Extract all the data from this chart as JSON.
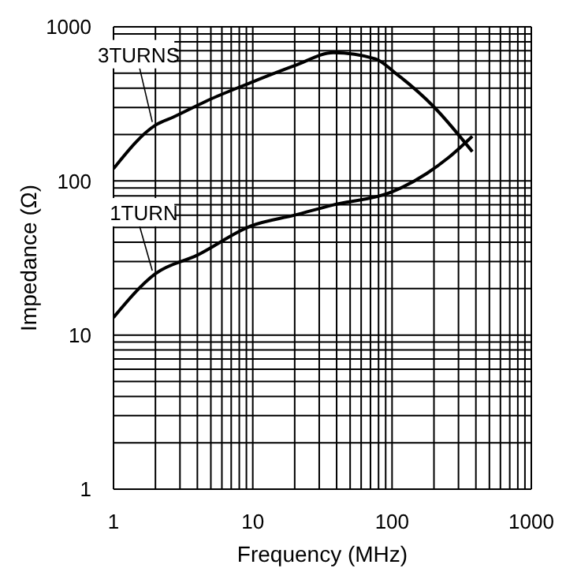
{
  "chart_data": {
    "type": "line",
    "xlabel": "Frequency (MHz)",
    "ylabel": "Impedance (Ω)",
    "log": "xy",
    "grid": true,
    "marker": "none",
    "line_style": "solid",
    "xlim": [
      1,
      1000
    ],
    "ylim": [
      1,
      1000
    ],
    "xticks": [
      1,
      {
        "value": 2,
        "label": null
      },
      {
        "value": 3,
        "label": null
      },
      {
        "value": 4,
        "label": null
      },
      {
        "value": 5,
        "label": null
      },
      {
        "value": 6,
        "label": null
      },
      {
        "value": 7,
        "label": null
      },
      {
        "value": 8,
        "label": null
      },
      {
        "value": 9,
        "label": null
      },
      10,
      {
        "value": 20,
        "label": null
      },
      {
        "value": 30,
        "label": null
      },
      {
        "value": 40,
        "label": null
      },
      {
        "value": 50,
        "label": null
      },
      {
        "value": 60,
        "label": null
      },
      {
        "value": 70,
        "label": null
      },
      {
        "value": 80,
        "label": null
      },
      {
        "value": 90,
        "label": null
      },
      100,
      {
        "value": 200,
        "label": null
      },
      {
        "value": 300,
        "label": null
      },
      {
        "value": 400,
        "label": null
      },
      {
        "value": 500,
        "label": null
      },
      {
        "value": 600,
        "label": null
      },
      {
        "value": 700,
        "label": null
      },
      {
        "value": 800,
        "label": null
      },
      {
        "value": 900,
        "label": null
      },
      1000
    ],
    "yticks": [
      1,
      {
        "value": 2,
        "label": null
      },
      {
        "value": 3,
        "label": null
      },
      {
        "value": 4,
        "label": null
      },
      {
        "value": 5,
        "label": null
      },
      {
        "value": 6,
        "label": null
      },
      {
        "value": 7,
        "label": null
      },
      {
        "value": 8,
        "label": null
      },
      {
        "value": 9,
        "label": null
      },
      10,
      {
        "value": 20,
        "label": null
      },
      {
        "value": 30,
        "label": null
      },
      {
        "value": 40,
        "label": null
      },
      {
        "value": 50,
        "label": null
      },
      {
        "value": 60,
        "label": null
      },
      {
        "value": 70,
        "label": null
      },
      {
        "value": 80,
        "label": null
      },
      {
        "value": 90,
        "label": null
      },
      100,
      {
        "value": 200,
        "label": null
      },
      {
        "value": 300,
        "label": null
      },
      {
        "value": 400,
        "label": null
      },
      {
        "value": 500,
        "label": null
      },
      {
        "value": 600,
        "label": null
      },
      {
        "value": 700,
        "label": null
      },
      {
        "value": 800,
        "label": null
      },
      {
        "value": 900,
        "label": null
      },
      1000
    ],
    "series": [
      {
        "name": "3TURNS",
        "color": "#000000",
        "x": [
          1,
          2,
          2.7,
          5,
          9.7,
          20,
          38,
          76,
          106,
          198,
          377
        ],
        "values": [
          120,
          230,
          260,
          340,
          435,
          560,
          680,
          620,
          500,
          305,
          155
        ]
      },
      {
        "name": "1TURN",
        "color": "#000000",
        "x": [
          1,
          2,
          4,
          9.7,
          20,
          38,
          100,
          178,
          250,
          377
        ],
        "values": [
          13,
          25,
          33,
          51,
          60,
          70,
          85,
          112,
          140,
          195
        ]
      }
    ]
  }
}
